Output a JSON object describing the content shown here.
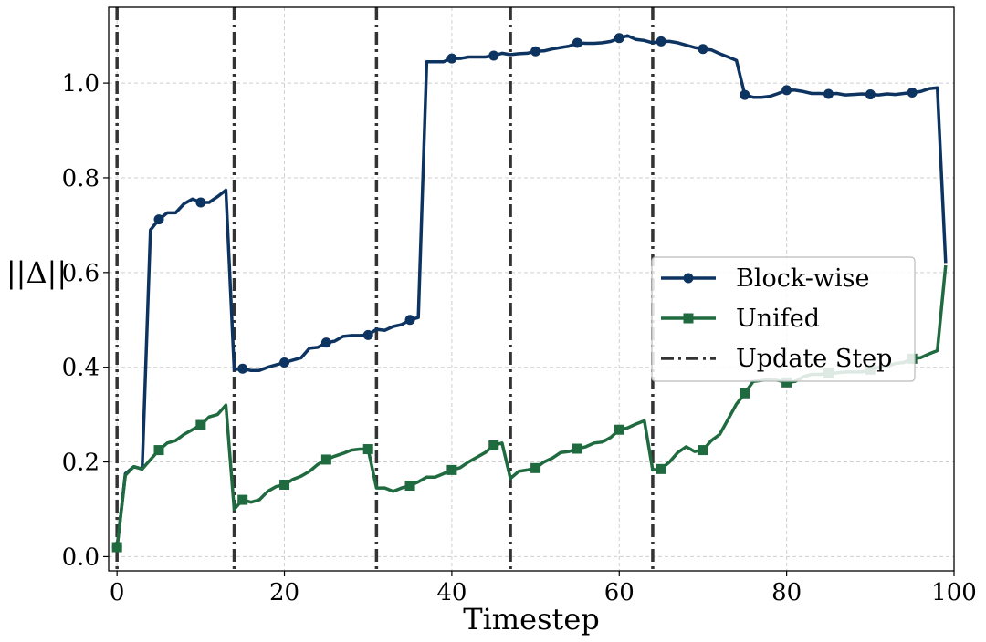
{
  "chart_data": {
    "type": "line",
    "title": "",
    "xlabel": "Timestep",
    "ylabel": "||Δ||",
    "xlim": [
      -1,
      100
    ],
    "ylim": [
      -0.03,
      1.16
    ],
    "xticks": [
      0,
      20,
      40,
      60,
      80,
      100
    ],
    "xtick_labels": [
      "0",
      "20",
      "40",
      "60",
      "80",
      "100"
    ],
    "yticks": [
      0.0,
      0.2,
      0.4,
      0.6,
      0.8,
      1.0
    ],
    "ytick_labels": [
      "0.0",
      "0.2",
      "0.4",
      "0.6",
      "0.8",
      "1.0"
    ],
    "grid": true,
    "legend_position": "center-right",
    "series": [
      {
        "name": "Block-wise",
        "color": "#0d3461",
        "marker": "circle",
        "marker_every": 5,
        "x": [
          0,
          1,
          2,
          3,
          4,
          5,
          6,
          7,
          8,
          9,
          10,
          11,
          12,
          13,
          14,
          15,
          16,
          17,
          18,
          19,
          20,
          21,
          22,
          23,
          24,
          25,
          26,
          27,
          28,
          29,
          30,
          31,
          32,
          33,
          34,
          35,
          36,
          37,
          38,
          39,
          40,
          41,
          42,
          43,
          44,
          45,
          46,
          47,
          48,
          49,
          50,
          51,
          52,
          53,
          54,
          55,
          56,
          57,
          58,
          59,
          60,
          61,
          62,
          63,
          64,
          65,
          66,
          67,
          68,
          69,
          70,
          71,
          72,
          73,
          74,
          75,
          76,
          77,
          78,
          79,
          80,
          81,
          82,
          83,
          84,
          85,
          86,
          87,
          88,
          89,
          90,
          91,
          92,
          93,
          94,
          95,
          96,
          97,
          98,
          99
        ],
        "y": [
          0.02,
          0.175,
          0.19,
          0.185,
          0.69,
          0.712,
          0.726,
          0.726,
          0.745,
          0.755,
          0.748,
          0.748,
          0.76,
          0.774,
          0.395,
          0.397,
          0.393,
          0.393,
          0.4,
          0.405,
          0.41,
          0.415,
          0.42,
          0.44,
          0.442,
          0.452,
          0.455,
          0.465,
          0.467,
          0.467,
          0.468,
          0.48,
          0.478,
          0.486,
          0.49,
          0.5,
          0.505,
          1.045,
          1.045,
          1.045,
          1.052,
          1.052,
          1.055,
          1.055,
          1.055,
          1.058,
          1.063,
          1.06,
          1.062,
          1.063,
          1.067,
          1.068,
          1.072,
          1.075,
          1.078,
          1.085,
          1.084,
          1.084,
          1.085,
          1.088,
          1.095,
          1.1,
          1.092,
          1.09,
          1.085,
          1.088,
          1.088,
          1.085,
          1.08,
          1.075,
          1.072,
          1.07,
          1.062,
          1.055,
          1.048,
          0.975,
          0.97,
          0.97,
          0.972,
          0.978,
          0.985,
          0.985,
          0.982,
          0.978,
          0.978,
          0.977,
          0.978,
          0.975,
          0.976,
          0.977,
          0.976,
          0.975,
          0.977,
          0.976,
          0.978,
          0.98,
          0.982,
          0.988,
          0.99,
          0.62
        ]
      },
      {
        "name": "Unifed",
        "color": "#1f6a3f",
        "marker": "square",
        "marker_every": 5,
        "x": [
          0,
          1,
          2,
          3,
          4,
          5,
          6,
          7,
          8,
          9,
          10,
          11,
          12,
          13,
          14,
          15,
          16,
          17,
          18,
          19,
          20,
          21,
          22,
          23,
          24,
          25,
          26,
          27,
          28,
          29,
          30,
          31,
          32,
          33,
          34,
          35,
          36,
          37,
          38,
          39,
          40,
          41,
          42,
          43,
          44,
          45,
          46,
          47,
          48,
          49,
          50,
          51,
          52,
          53,
          54,
          55,
          56,
          57,
          58,
          59,
          60,
          61,
          62,
          63,
          64,
          65,
          66,
          67,
          68,
          69,
          70,
          71,
          72,
          73,
          74,
          75,
          76,
          77,
          78,
          79,
          80,
          81,
          82,
          83,
          84,
          85,
          86,
          87,
          88,
          89,
          90,
          91,
          92,
          93,
          94,
          95,
          96,
          97,
          98,
          99
        ],
        "y": [
          0.02,
          0.172,
          0.19,
          0.185,
          0.205,
          0.225,
          0.24,
          0.245,
          0.258,
          0.268,
          0.278,
          0.295,
          0.3,
          0.32,
          0.1,
          0.12,
          0.115,
          0.12,
          0.138,
          0.148,
          0.152,
          0.163,
          0.17,
          0.18,
          0.195,
          0.205,
          0.212,
          0.218,
          0.225,
          0.227,
          0.227,
          0.145,
          0.145,
          0.138,
          0.145,
          0.15,
          0.158,
          0.168,
          0.168,
          0.175,
          0.183,
          0.188,
          0.2,
          0.21,
          0.22,
          0.235,
          0.24,
          0.165,
          0.18,
          0.183,
          0.187,
          0.2,
          0.208,
          0.22,
          0.222,
          0.228,
          0.232,
          0.24,
          0.242,
          0.252,
          0.268,
          0.272,
          0.28,
          0.287,
          0.183,
          0.185,
          0.2,
          0.22,
          0.232,
          0.222,
          0.225,
          0.245,
          0.258,
          0.29,
          0.322,
          0.345,
          0.37,
          0.372,
          0.375,
          0.372,
          0.368,
          0.37,
          0.38,
          0.385,
          0.385,
          0.387,
          0.388,
          0.39,
          0.39,
          0.39,
          0.395,
          0.4,
          0.402,
          0.408,
          0.41,
          0.418,
          0.42,
          0.428,
          0.435,
          0.615
        ]
      },
      {
        "name": "Update Step",
        "color": "#333333",
        "style": "dashdot",
        "vlines": [
          0,
          14,
          31,
          47,
          64
        ]
      }
    ]
  }
}
